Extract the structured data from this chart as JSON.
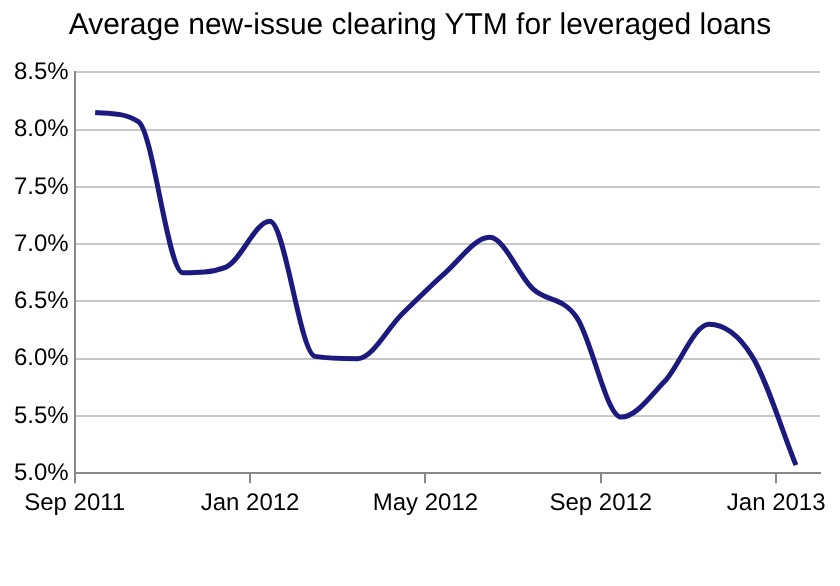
{
  "chart_data": {
    "type": "line",
    "title": "Average new-issue clearing YTM for leveraged loans",
    "x": [
      "2011-09-15",
      "2011-10-15",
      "2011-11-15",
      "2011-12-15",
      "2012-01-15",
      "2012-02-15",
      "2012-03-15",
      "2012-04-15",
      "2012-05-15",
      "2012-06-15",
      "2012-07-15",
      "2012-08-15",
      "2012-09-15",
      "2012-10-15",
      "2012-11-15",
      "2012-12-15",
      "2013-01-15"
    ],
    "series": [
      {
        "color": "#1c1a7e",
        "values": [
          8.15,
          8.07,
          6.75,
          6.8,
          7.2,
          6.02,
          6.0,
          6.39,
          6.75,
          7.06,
          6.61,
          6.36,
          5.49,
          5.8,
          6.3,
          6.02,
          5.07
        ]
      }
    ],
    "xlim": [
      "2011-09-01",
      "2013-02-01"
    ],
    "xticks": [
      {
        "value": "2011-09-01",
        "label": "Sep 2011"
      },
      {
        "value": "2012-01-01",
        "label": "Jan 2012"
      },
      {
        "value": "2012-05-01",
        "label": "May 2012"
      },
      {
        "value": "2012-09-01",
        "label": "Sep 2012"
      },
      {
        "value": "2013-01-01",
        "label": "Jan 2013"
      }
    ],
    "ylim": [
      5.0,
      8.5
    ],
    "yticks": [
      {
        "value": 5.0,
        "label": "5.0%"
      },
      {
        "value": 5.5,
        "label": "5.5%"
      },
      {
        "value": 6.0,
        "label": "6.0%"
      },
      {
        "value": 6.5,
        "label": "6.5%"
      },
      {
        "value": 7.0,
        "label": "7.0%"
      },
      {
        "value": 7.5,
        "label": "7.5%"
      },
      {
        "value": 8.0,
        "label": "8.0%"
      },
      {
        "value": 8.5,
        "label": "8.5%"
      }
    ],
    "grid": "y",
    "legend": false,
    "marker": "none",
    "line_style": "solid"
  }
}
